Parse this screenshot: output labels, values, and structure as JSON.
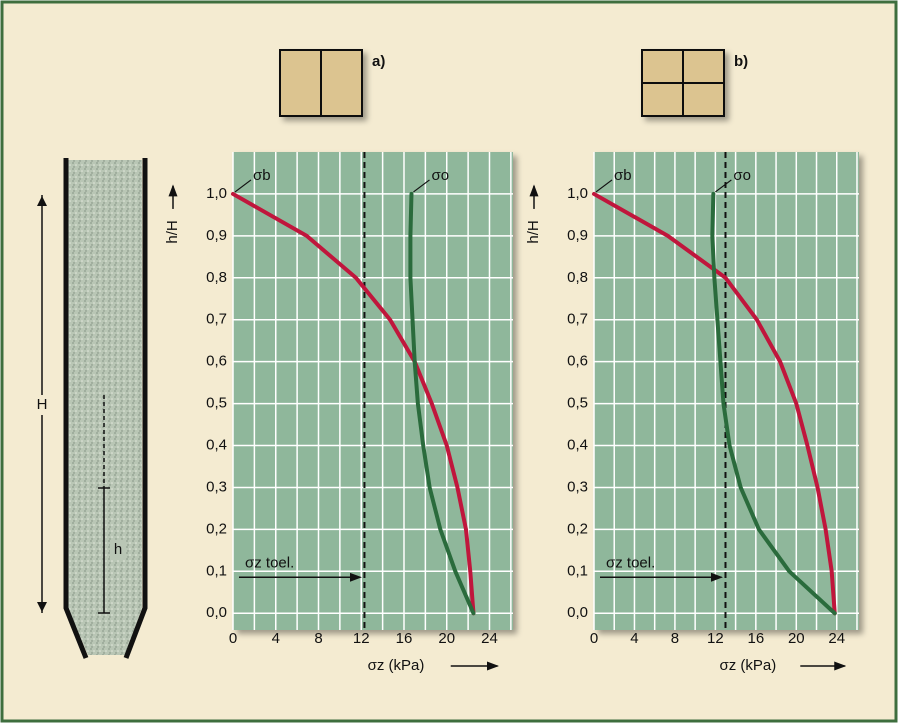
{
  "chart_data": [
    {
      "type": "line",
      "label": "a)",
      "xlabel": "σz (kPa)",
      "ylabel": "h/H",
      "xlim": [
        0,
        26.2
      ],
      "ylim": [
        -0.04,
        1.1
      ],
      "xticks": [
        0,
        4,
        8,
        12,
        16,
        20,
        24
      ],
      "xgrid": [
        0,
        2,
        4,
        6,
        8,
        10,
        12,
        14,
        16,
        18,
        20,
        22,
        24,
        26
      ],
      "yticks": [
        {
          "value": 0,
          "label": "0,0"
        },
        {
          "value": 0.1,
          "label": "0,1"
        },
        {
          "value": 0.2,
          "label": "0,2"
        },
        {
          "value": 0.3,
          "label": "0,3"
        },
        {
          "value": 0.4,
          "label": "0,4"
        },
        {
          "value": 0.5,
          "label": "0,5"
        },
        {
          "value": 0.6,
          "label": "0,6"
        },
        {
          "value": 0.7,
          "label": "0,7"
        },
        {
          "value": 0.8,
          "label": "0,8"
        },
        {
          "value": 0.9,
          "label": "0,9"
        },
        {
          "value": 1.0,
          "label": "1,0"
        }
      ],
      "grid": true,
      "threshold": {
        "value": 12.3,
        "label": "σz toel."
      },
      "series": [
        {
          "name": "σb",
          "color": "#c0163c",
          "x": [
            0,
            6.9,
            11.5,
            14.7,
            17.0,
            18.6,
            20.0,
            21.0,
            21.8,
            22.2,
            22.5
          ],
          "values": [
            1.0,
            0.9,
            0.8,
            0.7,
            0.6,
            0.5,
            0.4,
            0.3,
            0.2,
            0.1,
            0.0
          ]
        },
        {
          "name": "σo",
          "color": "#2a6b3c",
          "x": [
            16.7,
            16.6,
            16.6,
            16.8,
            17.0,
            17.3,
            17.8,
            18.4,
            19.4,
            20.8,
            22.5
          ],
          "values": [
            1.0,
            0.9,
            0.8,
            0.7,
            0.6,
            0.5,
            0.4,
            0.3,
            0.2,
            0.1,
            0.0
          ]
        }
      ]
    },
    {
      "type": "line",
      "label": "b)",
      "xlabel": "σz (kPa)",
      "ylabel": "h/H",
      "xlim": [
        0,
        26.2
      ],
      "ylim": [
        -0.04,
        1.1
      ],
      "xticks": [
        0,
        4,
        8,
        12,
        16,
        20,
        24
      ],
      "xgrid": [
        0,
        2,
        4,
        6,
        8,
        10,
        12,
        14,
        16,
        18,
        20,
        22,
        24,
        26
      ],
      "yticks": [
        {
          "value": 0,
          "label": "0,0"
        },
        {
          "value": 0.1,
          "label": "0,1"
        },
        {
          "value": 0.2,
          "label": "0,2"
        },
        {
          "value": 0.3,
          "label": "0,3"
        },
        {
          "value": 0.4,
          "label": "0,4"
        },
        {
          "value": 0.5,
          "label": "0,5"
        },
        {
          "value": 0.6,
          "label": "0,6"
        },
        {
          "value": 0.7,
          "label": "0,7"
        },
        {
          "value": 0.8,
          "label": "0,8"
        },
        {
          "value": 0.9,
          "label": "0,9"
        },
        {
          "value": 1.0,
          "label": "1,0"
        }
      ],
      "grid": true,
      "threshold": {
        "value": 13.0,
        "label": "σz toel."
      },
      "series": [
        {
          "name": "σb",
          "color": "#c0163c",
          "x": [
            0,
            7.3,
            13.0,
            16.1,
            18.4,
            20.0,
            21.1,
            22.1,
            22.9,
            23.5,
            23.8
          ],
          "values": [
            1.0,
            0.9,
            0.8,
            0.7,
            0.6,
            0.5,
            0.4,
            0.3,
            0.2,
            0.1,
            0.0
          ]
        },
        {
          "name": "σo",
          "color": "#2a6b3c",
          "x": [
            11.8,
            11.7,
            11.9,
            12.2,
            12.5,
            12.8,
            13.4,
            14.5,
            16.3,
            19.3,
            23.8
          ],
          "values": [
            1.0,
            0.9,
            0.8,
            0.7,
            0.6,
            0.5,
            0.4,
            0.3,
            0.2,
            0.1,
            0.0
          ]
        }
      ]
    }
  ],
  "silo": {
    "height_label": "H",
    "level_label": "h"
  }
}
